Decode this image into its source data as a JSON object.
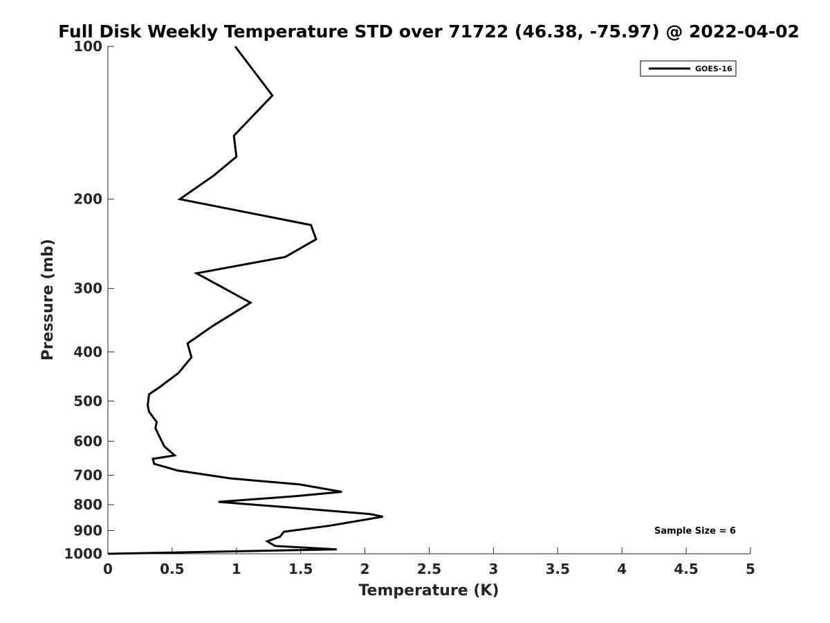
{
  "chart_data": {
    "type": "line",
    "title": "Full Disk Weekly Temperature STD over 71722 (46.38, -75.97) @ 2022-04-02",
    "xlabel": "Temperature (K)",
    "ylabel": "Pressure (mb)",
    "xlim": [
      0,
      5
    ],
    "ylim": [
      100,
      1000
    ],
    "y_scale": "log",
    "y_reversed": true,
    "grid": false,
    "legend_position": "top-right",
    "x_ticks": [
      "0",
      "0.5",
      "1",
      "1.5",
      "2",
      "2.5",
      "3",
      "3.5",
      "4",
      "4.5",
      "5"
    ],
    "x_tick_values": [
      0,
      0.5,
      1,
      1.5,
      2,
      2.5,
      3,
      3.5,
      4,
      4.5,
      5
    ],
    "y_ticks": [
      "100",
      "200",
      "300",
      "400",
      "500",
      "600",
      "700",
      "800",
      "900",
      "1000"
    ],
    "y_tick_values": [
      100,
      200,
      300,
      400,
      500,
      600,
      700,
      800,
      900,
      1000
    ],
    "annotation": "Sample Size = 6",
    "series": [
      {
        "name": "GOES-16",
        "color": "#000000",
        "points": [
          [
            0.99,
            100
          ],
          [
            1.28,
            125
          ],
          [
            0.98,
            150
          ],
          [
            1.0,
            165
          ],
          [
            0.82,
            180
          ],
          [
            0.56,
            200
          ],
          [
            1.58,
            225
          ],
          [
            1.62,
            240
          ],
          [
            1.38,
            260
          ],
          [
            0.69,
            280
          ],
          [
            1.11,
            320
          ],
          [
            0.82,
            355
          ],
          [
            0.62,
            385
          ],
          [
            0.65,
            410
          ],
          [
            0.55,
            440
          ],
          [
            0.4,
            470
          ],
          [
            0.32,
            485
          ],
          [
            0.31,
            510
          ],
          [
            0.32,
            525
          ],
          [
            0.38,
            550
          ],
          [
            0.37,
            565
          ],
          [
            0.39,
            580
          ],
          [
            0.44,
            615
          ],
          [
            0.52,
            640
          ],
          [
            0.35,
            650
          ],
          [
            0.36,
            665
          ],
          [
            0.54,
            685
          ],
          [
            0.95,
            710
          ],
          [
            1.49,
            730
          ],
          [
            1.82,
            755
          ],
          [
            1.46,
            770
          ],
          [
            0.86,
            790
          ],
          [
            1.4,
            810
          ],
          [
            2.04,
            835
          ],
          [
            2.14,
            845
          ],
          [
            1.73,
            880
          ],
          [
            1.37,
            905
          ],
          [
            1.34,
            925
          ],
          [
            1.24,
            945
          ],
          [
            1.3,
            965
          ],
          [
            1.78,
            980
          ],
          [
            0.0,
            1000
          ]
        ]
      }
    ]
  }
}
